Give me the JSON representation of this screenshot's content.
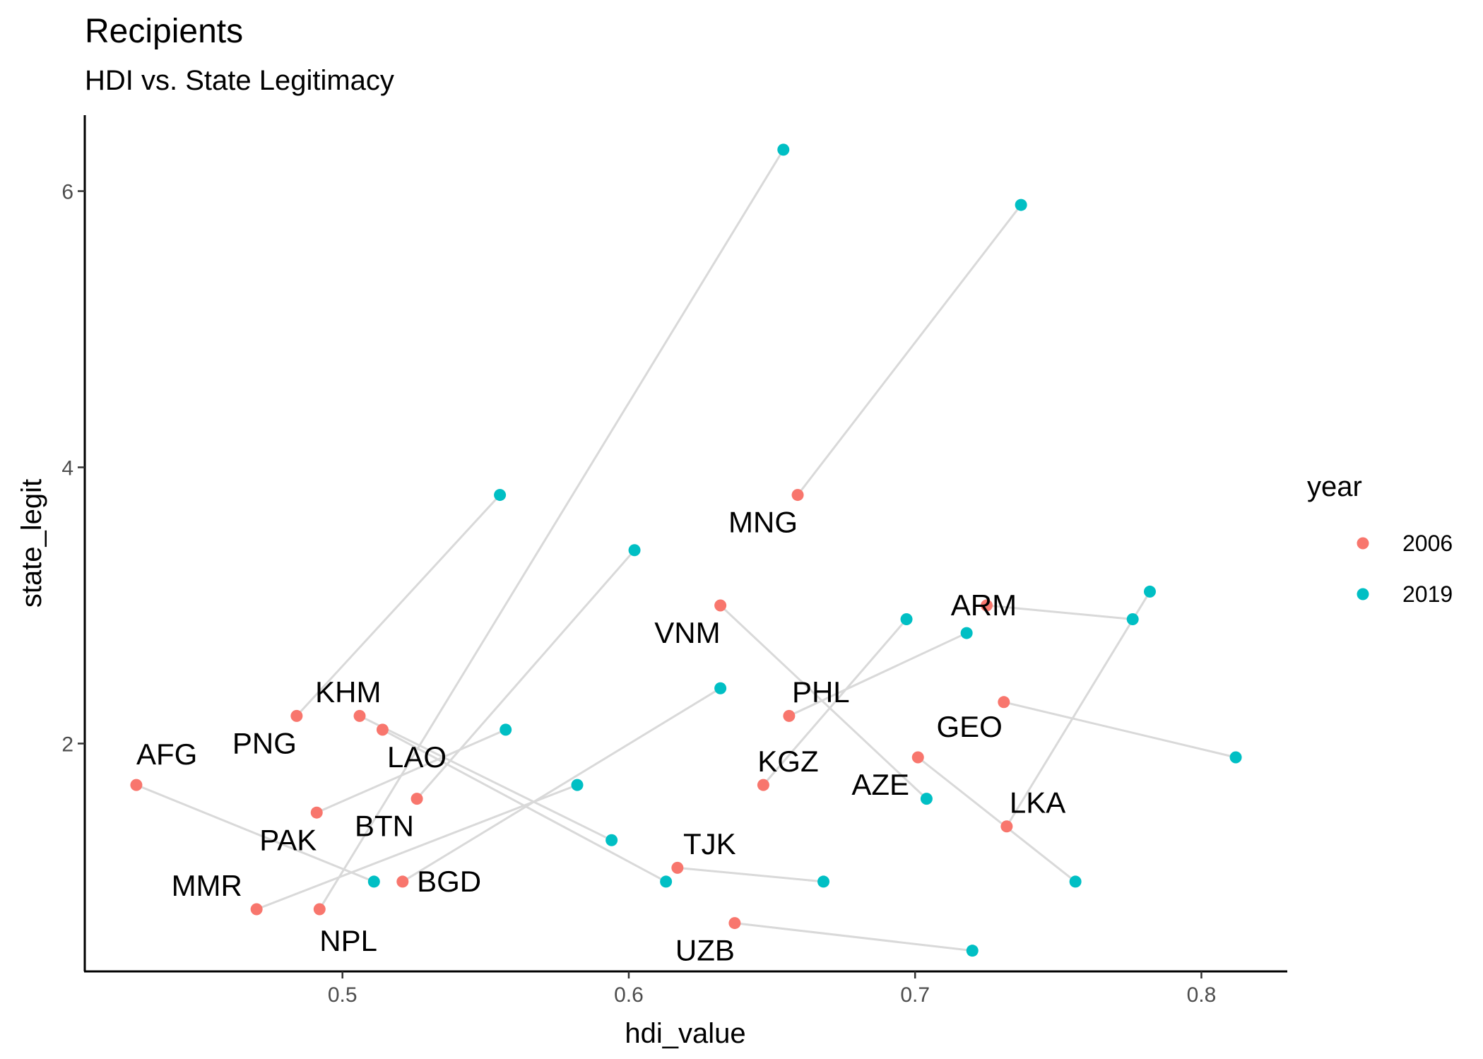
{
  "chart_data": {
    "type": "scatter",
    "title": "Recipients",
    "subtitle": "HDI vs. State Legitimacy",
    "xlabel": "hdi_value",
    "ylabel": "state_legit",
    "xlim": [
      0.41,
      0.83
    ],
    "ylim": [
      0.35,
      6.55
    ],
    "xticks": [
      0.5,
      0.6,
      0.7,
      0.8
    ],
    "xtick_labels": [
      "0.5",
      "0.6",
      "0.7",
      "0.8"
    ],
    "yticks": [
      2,
      4,
      6
    ],
    "ytick_labels": [
      "2",
      "4",
      "6"
    ],
    "grid": false,
    "legend": {
      "title": "year",
      "position": "right",
      "entries": [
        {
          "label": "2006",
          "color": "#F8766D"
        },
        {
          "label": "2019",
          "color": "#00BFC4"
        }
      ]
    },
    "connector_color": "#d9d9d9",
    "countries": [
      {
        "code": "AFG",
        "hdi_2006": 0.428,
        "legit_2006": 1.7,
        "hdi_2019": 0.511,
        "legit_2019": 1.0
      },
      {
        "code": "PNG",
        "hdi_2006": 0.484,
        "legit_2006": 2.2,
        "hdi_2019": 0.555,
        "legit_2019": 3.8
      },
      {
        "code": "KHM",
        "hdi_2006": 0.506,
        "legit_2006": 2.2,
        "hdi_2019": 0.594,
        "legit_2019": 1.3
      },
      {
        "code": "LAO",
        "hdi_2006": 0.514,
        "legit_2006": 2.1,
        "hdi_2019": 0.613,
        "legit_2019": 1.0
      },
      {
        "code": "PAK",
        "hdi_2006": 0.491,
        "legit_2006": 1.5,
        "hdi_2019": 0.557,
        "legit_2019": 2.1
      },
      {
        "code": "BTN",
        "hdi_2006": 0.526,
        "legit_2006": 1.6,
        "hdi_2019": 0.602,
        "legit_2019": 3.4
      },
      {
        "code": "MMR",
        "hdi_2006": 0.47,
        "legit_2006": 0.8,
        "hdi_2019": 0.582,
        "legit_2019": 1.7
      },
      {
        "code": "NPL",
        "hdi_2006": 0.492,
        "legit_2006": 0.8,
        "hdi_2019": 0.654,
        "legit_2019": 6.3
      },
      {
        "code": "BGD",
        "hdi_2006": 0.521,
        "legit_2006": 1.0,
        "hdi_2019": 0.632,
        "legit_2019": 2.4
      },
      {
        "code": "TJK",
        "hdi_2006": 0.617,
        "legit_2006": 1.1,
        "hdi_2019": 0.668,
        "legit_2019": 1.0
      },
      {
        "code": "UZB",
        "hdi_2006": 0.637,
        "legit_2006": 0.7,
        "hdi_2019": 0.72,
        "legit_2019": 0.5
      },
      {
        "code": "VNM",
        "hdi_2006": 0.632,
        "legit_2006": 3.0,
        "hdi_2019": 0.704,
        "legit_2019": 1.6
      },
      {
        "code": "MNG",
        "hdi_2006": 0.659,
        "legit_2006": 3.8,
        "hdi_2019": 0.737,
        "legit_2019": 5.9
      },
      {
        "code": "PHL",
        "hdi_2006": 0.656,
        "legit_2006": 2.2,
        "hdi_2019": 0.718,
        "legit_2019": 2.8
      },
      {
        "code": "KGZ",
        "hdi_2006": 0.647,
        "legit_2006": 1.7,
        "hdi_2019": 0.697,
        "legit_2019": 2.9
      },
      {
        "code": "ARM",
        "hdi_2006": 0.725,
        "legit_2006": 3.0,
        "hdi_2019": 0.776,
        "legit_2019": 2.9
      },
      {
        "code": "GEO",
        "hdi_2006": 0.731,
        "legit_2006": 2.3,
        "hdi_2019": 0.812,
        "legit_2019": 1.9
      },
      {
        "code": "AZE",
        "hdi_2006": 0.701,
        "legit_2006": 1.9,
        "hdi_2019": 0.756,
        "legit_2019": 1.0
      },
      {
        "code": "LKA",
        "hdi_2006": 0.732,
        "legit_2006": 1.4,
        "hdi_2019": 0.782,
        "legit_2019": 3.1
      }
    ],
    "point_labels": [
      {
        "text": "AFG",
        "x": 0.428,
        "y": 1.7,
        "anchor": "start",
        "dx": 0.0,
        "dy": 0.22
      },
      {
        "text": "PNG",
        "x": 0.484,
        "y": 2.2,
        "anchor": "end",
        "dx": -0.0,
        "dy": -0.2
      },
      {
        "text": "KHM",
        "x": 0.506,
        "y": 2.2,
        "anchor": "middle",
        "dx": -0.004,
        "dy": 0.17
      },
      {
        "text": "LAO",
        "x": 0.514,
        "y": 2.1,
        "anchor": "middle",
        "dx": 0.012,
        "dy": -0.2
      },
      {
        "text": "PAK",
        "x": 0.491,
        "y": 1.5,
        "anchor": "end",
        "dx": -0.0,
        "dy": -0.2
      },
      {
        "text": "BTN",
        "x": 0.526,
        "y": 1.6,
        "anchor": "end",
        "dx": -0.001,
        "dy": -0.2
      },
      {
        "text": "MMR",
        "x": 0.47,
        "y": 0.8,
        "anchor": "end",
        "dx": -0.005,
        "dy": 0.17
      },
      {
        "text": "NPL",
        "x": 0.492,
        "y": 0.8,
        "anchor": "start",
        "dx": 0.0,
        "dy": -0.23
      },
      {
        "text": "BGD",
        "x": 0.521,
        "y": 1.0,
        "anchor": "start",
        "dx": 0.005,
        "dy": 0.0
      },
      {
        "text": "TJK",
        "x": 0.617,
        "y": 1.1,
        "anchor": "start",
        "dx": 0.002,
        "dy": 0.17
      },
      {
        "text": "UZB",
        "x": 0.637,
        "y": 0.7,
        "anchor": "end",
        "dx": 0.0,
        "dy": -0.2
      },
      {
        "text": "VNM",
        "x": 0.632,
        "y": 3.0,
        "anchor": "end",
        "dx": 0.0,
        "dy": -0.2
      },
      {
        "text": "MNG",
        "x": 0.659,
        "y": 3.8,
        "anchor": "end",
        "dx": 0.0,
        "dy": -0.2
      },
      {
        "text": "PHL",
        "x": 0.656,
        "y": 2.2,
        "anchor": "start",
        "dx": 0.001,
        "dy": 0.17
      },
      {
        "text": "KGZ",
        "x": 0.647,
        "y": 1.7,
        "anchor": "start",
        "dx": -0.002,
        "dy": 0.17
      },
      {
        "text": "ARM",
        "x": 0.725,
        "y": 3.0,
        "anchor": "middle",
        "dx": -0.001,
        "dy": 0.0
      },
      {
        "text": "GEO",
        "x": 0.731,
        "y": 2.3,
        "anchor": "middle",
        "dx": -0.012,
        "dy": -0.18
      },
      {
        "text": "AZE",
        "x": 0.701,
        "y": 1.9,
        "anchor": "end",
        "dx": -0.003,
        "dy": -0.2
      },
      {
        "text": "LKA",
        "x": 0.732,
        "y": 1.4,
        "anchor": "start",
        "dx": 0.001,
        "dy": 0.17
      }
    ]
  }
}
